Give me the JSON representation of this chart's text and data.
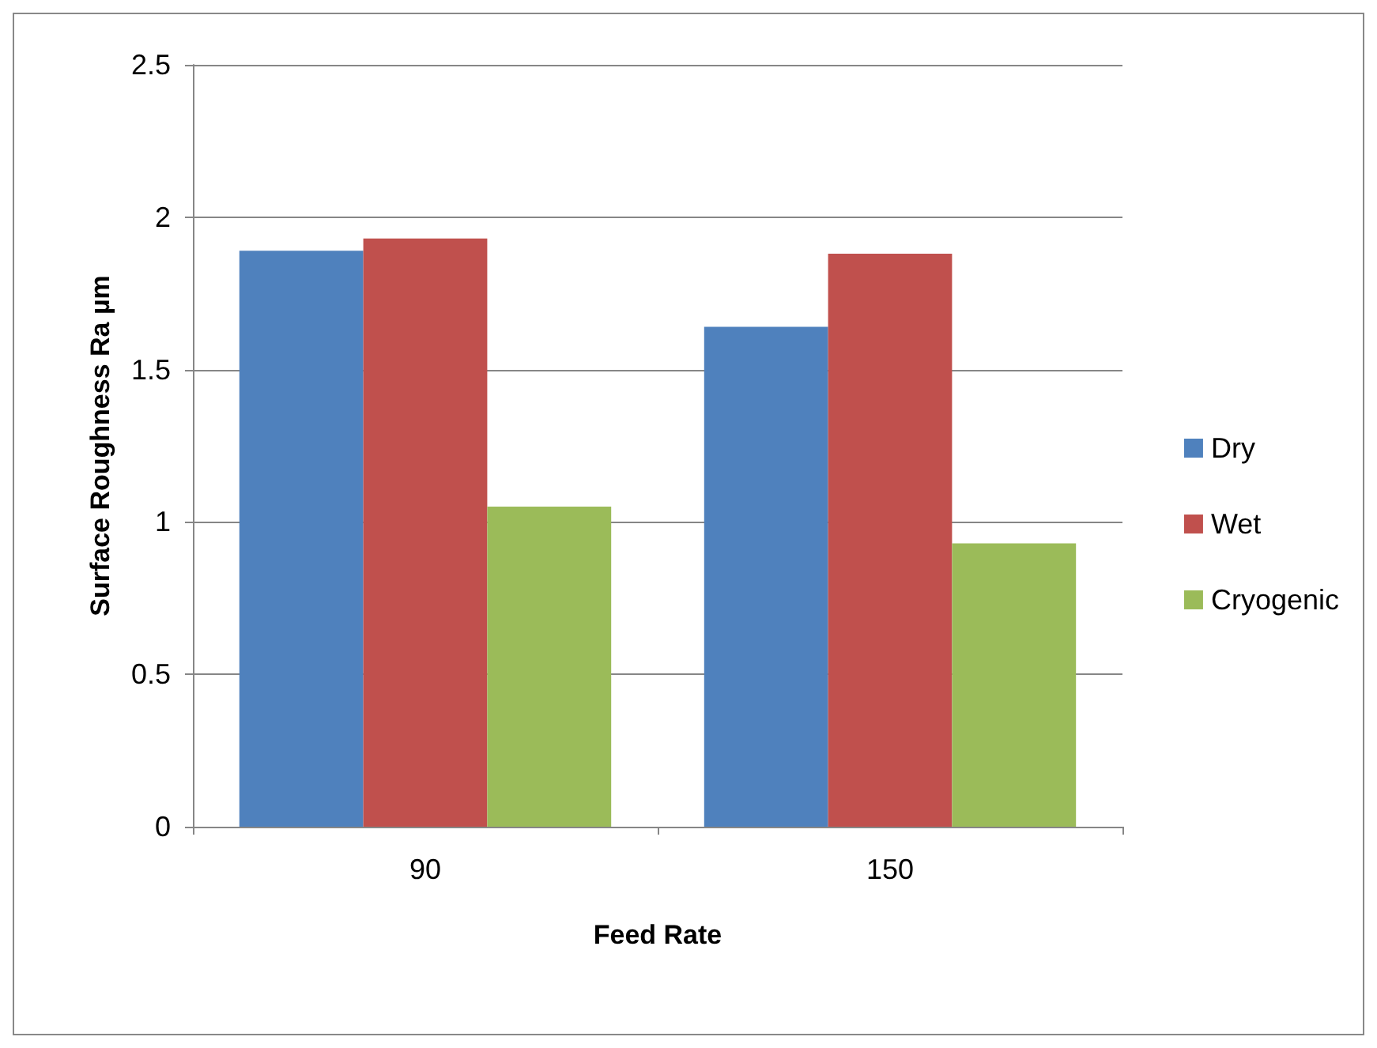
{
  "chart_data": {
    "type": "bar",
    "xlabel": "Feed Rate",
    "ylabel": "Surface Roughness Ra µm",
    "categories": [
      "90",
      "150"
    ],
    "series": [
      {
        "name": "Dry",
        "color": "#4f81bd",
        "values": [
          1.89,
          1.64
        ]
      },
      {
        "name": "Wet",
        "color": "#c0504d",
        "values": [
          1.93,
          1.88
        ]
      },
      {
        "name": "Cryogenic",
        "color": "#9bbb59",
        "values": [
          1.05,
          0.93
        ]
      }
    ],
    "ylim": [
      0,
      2.5
    ],
    "yticks": [
      0,
      0.5,
      1,
      1.5,
      2,
      2.5
    ],
    "grid": "y",
    "legend": "right"
  }
}
